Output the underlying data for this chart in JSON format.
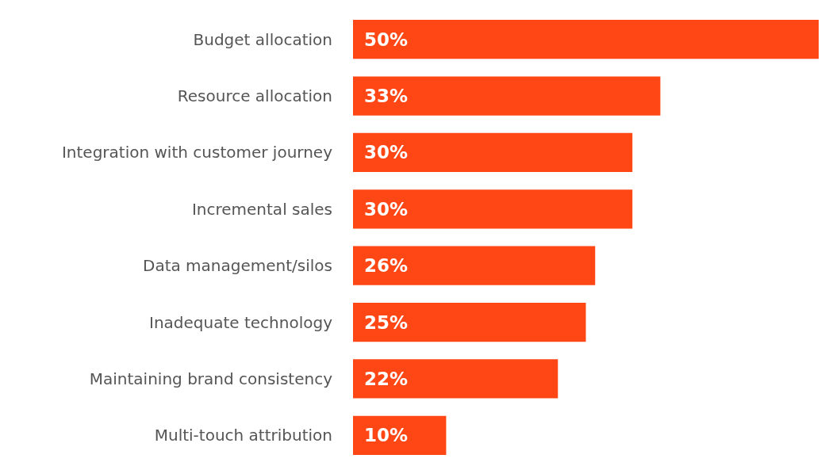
{
  "chart_data": {
    "type": "bar",
    "orientation": "horizontal",
    "categories": [
      "Budget allocation",
      "Resource allocation",
      "Integration with customer journey",
      "Incremental sales",
      "Data management/silos",
      "Inadequate technology",
      "Maintaining brand consistency",
      "Multi-touch attribution"
    ],
    "values": [
      50,
      33,
      30,
      30,
      26,
      25,
      22,
      10
    ],
    "value_labels": [
      "50%",
      "33%",
      "30%",
      "30%",
      "26%",
      "25%",
      "22%",
      "10%"
    ],
    "color": "#ff4716"
  }
}
